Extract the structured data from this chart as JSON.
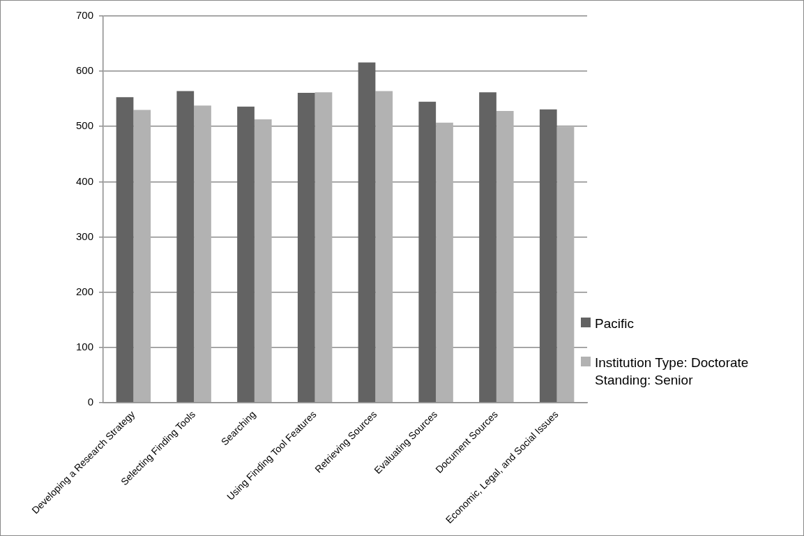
{
  "chart_data": {
    "type": "bar",
    "categories": [
      "Developing a Research Strategy",
      "Selecting Finding Tools",
      "Searching",
      "Using Finding Tool Features",
      "Retrieving Sources",
      "Evaluating Sources",
      "Document Sources",
      "Economic, Legal, and Social Issues"
    ],
    "series": [
      {
        "name": "Pacific",
        "color": "#636363",
        "values": [
          553,
          564,
          536,
          561,
          616,
          545,
          562,
          531
        ]
      },
      {
        "name": "Institution Type: Doctorate\nStanding: Senior",
        "color": "#b2b2b2",
        "values": [
          530,
          538,
          513,
          562,
          564,
          507,
          528,
          499
        ]
      }
    ],
    "ylim": [
      0,
      700
    ],
    "yticks": [
      0,
      100,
      200,
      300,
      400,
      500,
      600,
      700
    ],
    "grid": "y",
    "legend": "right"
  }
}
